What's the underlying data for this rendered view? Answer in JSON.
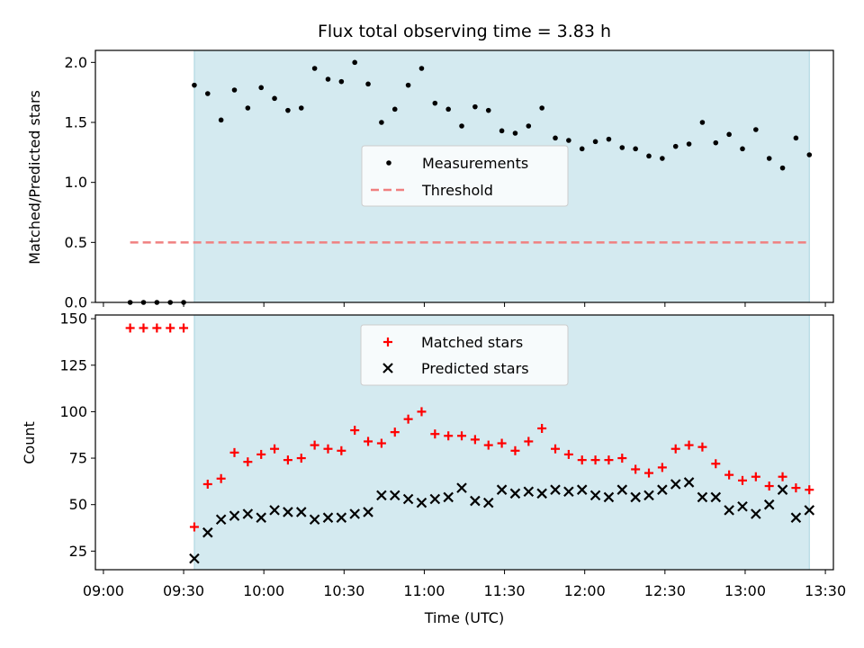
{
  "chart_data": {
    "title": "Flux total observing time = 3.83 h",
    "xlabel": "Time (UTC)",
    "x_tick_labels": [
      "09:00",
      "09:30",
      "10:00",
      "10:30",
      "11:00",
      "11:30",
      "12:00",
      "12:30",
      "13:00",
      "13:30"
    ],
    "x_ticks": [
      "09:00",
      "09:30",
      "10:00",
      "10:30",
      "11:00",
      "11:30",
      "12:00",
      "12:30",
      "13:00",
      "13:30"
    ],
    "xlim": [
      "08:57",
      "13:33"
    ],
    "shaded_region": {
      "start": "09:34",
      "end": "13:24",
      "color": "#d4eaf0"
    },
    "times": [
      "09:10",
      "09:15",
      "09:20",
      "09:25",
      "09:30",
      "09:34",
      "09:39",
      "09:44",
      "09:49",
      "09:54",
      "09:59",
      "10:04",
      "10:09",
      "10:14",
      "10:19",
      "10:24",
      "10:29",
      "10:34",
      "10:39",
      "10:44",
      "10:49",
      "10:54",
      "10:59",
      "11:04",
      "11:09",
      "11:14",
      "11:19",
      "11:24",
      "11:29",
      "11:34",
      "11:39",
      "11:44",
      "11:49",
      "11:54",
      "11:59",
      "12:04",
      "12:09",
      "12:14",
      "12:19",
      "12:24",
      "12:29",
      "12:34",
      "12:39",
      "12:44",
      "12:49",
      "12:54",
      "12:59",
      "13:04",
      "13:09",
      "13:14",
      "13:19",
      "13:24"
    ],
    "top": {
      "type": "scatter",
      "ylabel": "Matched/Predicted stars",
      "ylim": [
        0,
        2.1
      ],
      "y_ticks": [
        "0.0",
        "0.5",
        "1.0",
        "1.5",
        "2.0"
      ],
      "series": [
        {
          "name": "Measurements",
          "color": "#000000",
          "marker": "dot",
          "values": [
            0,
            0,
            0,
            0,
            0,
            1.81,
            1.74,
            1.52,
            1.77,
            1.62,
            1.79,
            1.7,
            1.6,
            1.62,
            1.95,
            1.86,
            1.84,
            2.0,
            1.82,
            1.5,
            1.61,
            1.81,
            1.95,
            1.66,
            1.61,
            1.47,
            1.63,
            1.6,
            1.43,
            1.41,
            1.47,
            1.62,
            1.37,
            1.35,
            1.28,
            1.34,
            1.36,
            1.29,
            1.28,
            1.22,
            1.2,
            1.3,
            1.32,
            1.5,
            1.33,
            1.4,
            1.28,
            1.44,
            1.2,
            1.12,
            1.37,
            1.23
          ]
        }
      ],
      "threshold": {
        "name": "Threshold",
        "value": 0.5,
        "start": "09:10",
        "end": "13:24",
        "color": "#f08080"
      },
      "legend_position": "center-right"
    },
    "bottom": {
      "type": "scatter",
      "ylabel": "Count",
      "ylim": [
        15,
        152
      ],
      "y_ticks": [
        "25",
        "50",
        "75",
        "100",
        "125",
        "150"
      ],
      "series": [
        {
          "name": "Matched stars",
          "color": "#ff0000",
          "marker": "plus",
          "values": [
            145,
            145,
            145,
            145,
            145,
            38,
            61,
            64,
            78,
            73,
            77,
            80,
            74,
            75,
            82,
            80,
            79,
            90,
            84,
            83,
            89,
            96,
            100,
            88,
            87,
            87,
            85,
            82,
            83,
            79,
            84,
            91,
            80,
            77,
            74,
            74,
            74,
            75,
            69,
            67,
            70,
            80,
            82,
            81,
            72,
            66,
            63,
            65,
            60,
            65,
            59,
            58
          ]
        },
        {
          "name": "Predicted stars",
          "color": "#000000",
          "marker": "x",
          "values": [
            null,
            null,
            null,
            null,
            null,
            21,
            35,
            42,
            44,
            45,
            43,
            47,
            46,
            46,
            42,
            43,
            43,
            45,
            46,
            55,
            55,
            53,
            51,
            53,
            54,
            59,
            52,
            51,
            58,
            56,
            57,
            56,
            58,
            57,
            58,
            55,
            54,
            58,
            54,
            55,
            58,
            61,
            62,
            54,
            54,
            47,
            49,
            45,
            50,
            58,
            43,
            47
          ]
        }
      ],
      "legend_position": "upper-center"
    }
  }
}
